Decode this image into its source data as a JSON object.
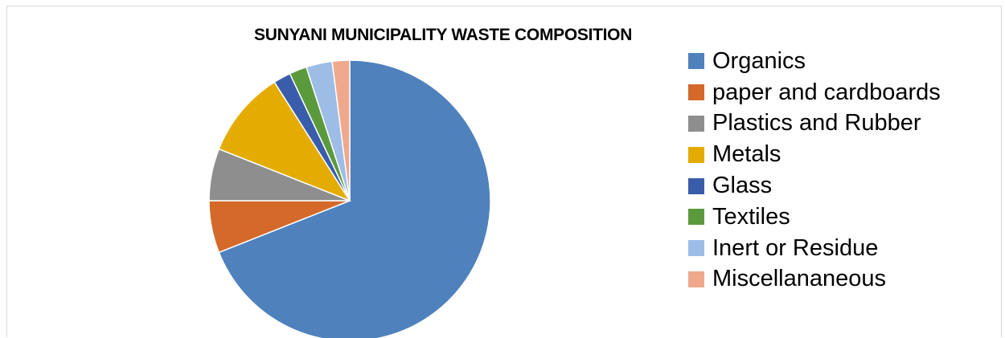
{
  "chart_data": {
    "type": "pie",
    "title": "SUNYANI MUNICIPALITY WASTE COMPOSITION",
    "legend_position": "right",
    "categories": [
      "Organics",
      "paper and cardboards",
      "Plastics and Rubber",
      "Metals",
      "Glass",
      "Textiles",
      "Inert or Residue",
      "Miscellananeous"
    ],
    "values": [
      69,
      6,
      6,
      10,
      2,
      2,
      3,
      2
    ],
    "colors": [
      "#4f81bd",
      "#d4692a",
      "#8e8e8e",
      "#e4ac00",
      "#3a5dab",
      "#5b9a3c",
      "#9dbde6",
      "#f0a88c"
    ]
  }
}
